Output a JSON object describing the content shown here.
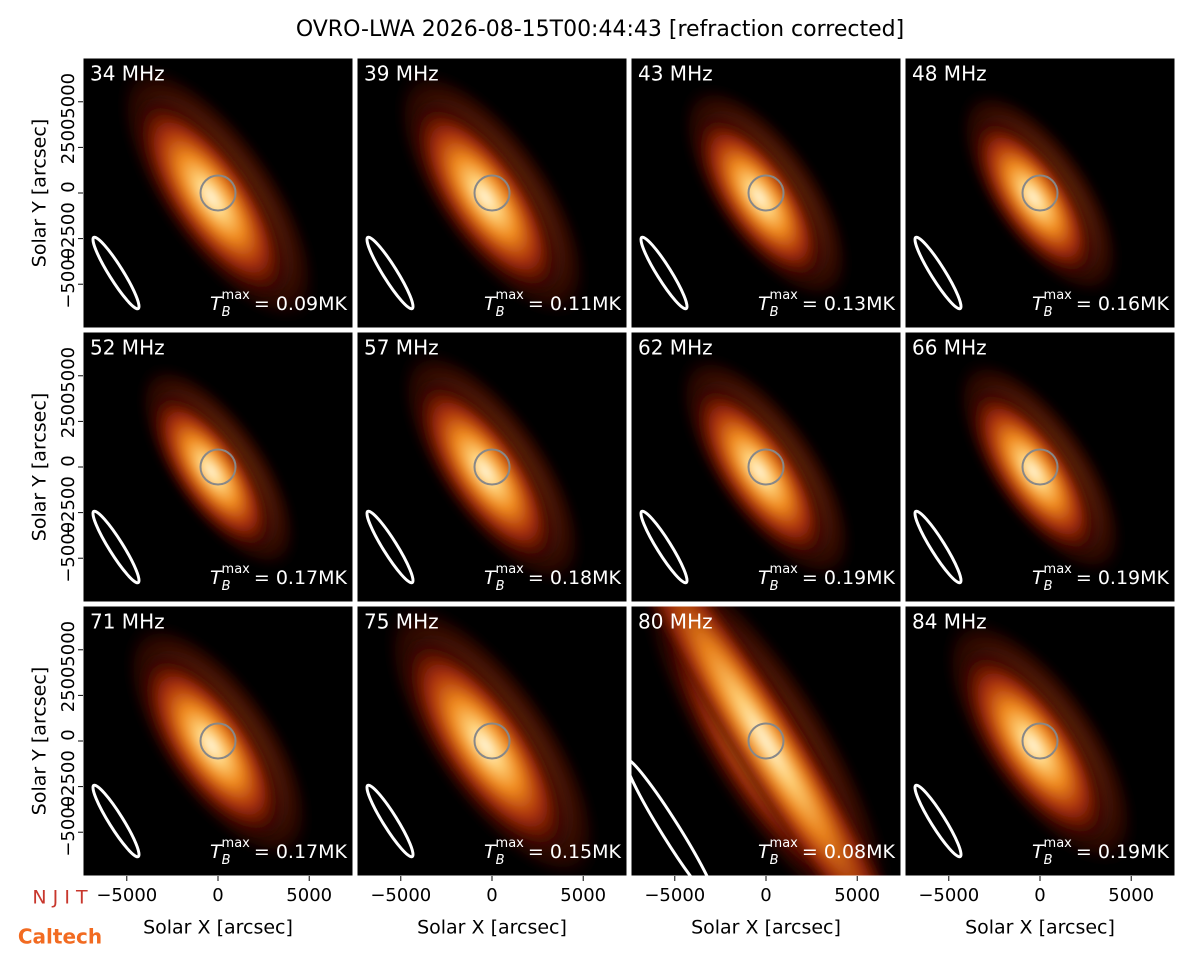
{
  "title": "OVRO-LWA 2026-08-15T00:44:43 [refraction corrected]",
  "axes": {
    "xlabel": "Solar X [arcsec]",
    "ylabel": "Solar Y [arcsec]",
    "xlim": [
      -7400,
      7400
    ],
    "ylim": [
      -7400,
      7400
    ],
    "xticks": [
      {
        "value": -5000,
        "label": "−5000"
      },
      0,
      5000
    ],
    "yticks": [
      {
        "value": -5000,
        "label": "−5000"
      },
      {
        "value": -2500,
        "label": "−2500"
      },
      0,
      2500,
      5000
    ]
  },
  "tb_symbol": "T",
  "tb_sub": "B",
  "tb_sup": "max",
  "logos": [
    "N J I T",
    "Caltech"
  ],
  "chart_data": [
    {
      "type": "image",
      "freq": "34 MHz",
      "tb_max": "= 0.09MK"
    },
    {
      "type": "image",
      "freq": "39 MHz",
      "tb_max": "= 0.11MK"
    },
    {
      "type": "image",
      "freq": "43 MHz",
      "tb_max": "= 0.13MK"
    },
    {
      "type": "image",
      "freq": "48 MHz",
      "tb_max": "= 0.16MK"
    },
    {
      "type": "image",
      "freq": "52 MHz",
      "tb_max": "= 0.17MK"
    },
    {
      "type": "image",
      "freq": "57 MHz",
      "tb_max": "= 0.18MK"
    },
    {
      "type": "image",
      "freq": "62 MHz",
      "tb_max": "= 0.19MK"
    },
    {
      "type": "image",
      "freq": "66 MHz",
      "tb_max": "= 0.19MK"
    },
    {
      "type": "image",
      "freq": "71 MHz",
      "tb_max": "= 0.17MK"
    },
    {
      "type": "image",
      "freq": "75 MHz",
      "tb_max": "= 0.15MK"
    },
    {
      "type": "image",
      "freq": "80 MHz",
      "tb_max": "= 0.08MK"
    },
    {
      "type": "image",
      "freq": "84 MHz",
      "tb_max": "= 0.19MK"
    }
  ]
}
